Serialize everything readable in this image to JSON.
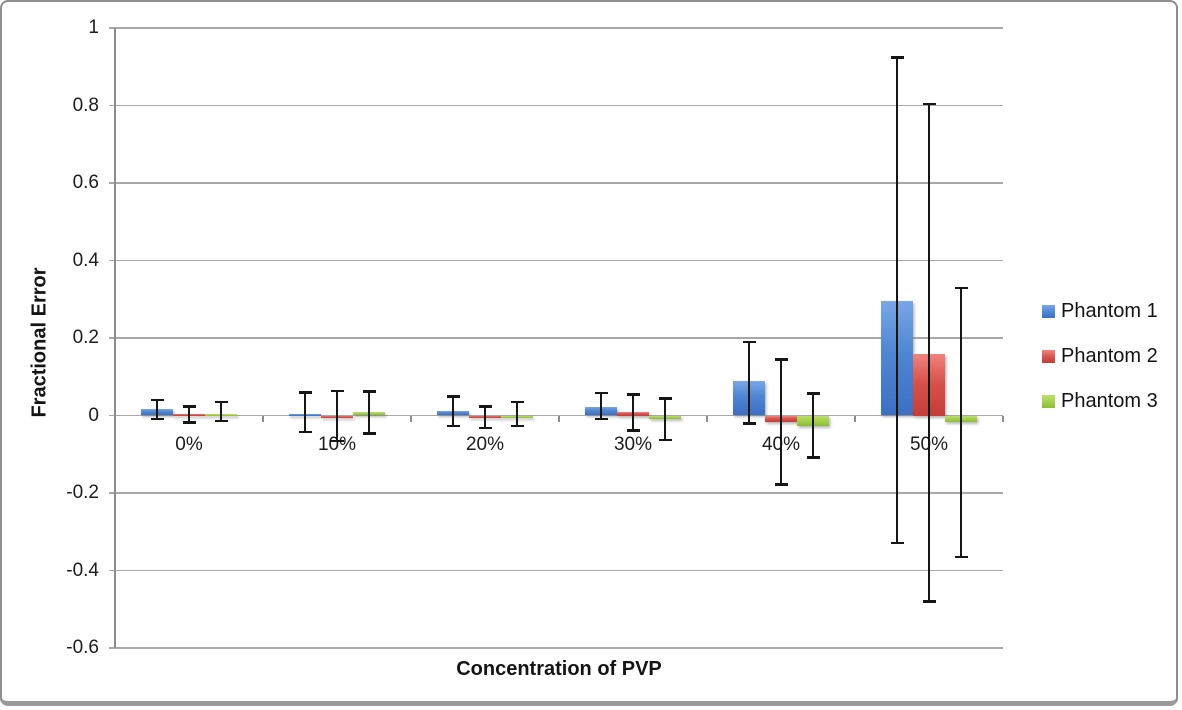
{
  "chart_data": {
    "type": "bar",
    "title": "",
    "xlabel": "Concentration of PVP",
    "ylabel": "Fractional Error",
    "categories": [
      "0%",
      "10%",
      "20%",
      "30%",
      "40%",
      "50%"
    ],
    "ylim": [
      -0.6,
      1
    ],
    "ytick_step": 0.2,
    "ytick_labels": [
      "1",
      "0.8",
      "0.6",
      "0.4",
      "0.2",
      "0",
      "-0.2",
      "-0.4",
      "-0.6"
    ],
    "grid": "horizontal-only",
    "legend_position": "right",
    "error_bars": true,
    "colors": {
      "gridline": "#a8a8a8",
      "axis": "#8c8c8c",
      "error_bar": "#161616",
      "text": "#1c1c1c"
    },
    "series": [
      {
        "name": "Phantom 1",
        "color": "#4f86d2",
        "color_light": "#7aa7e8",
        "color_dark": "#3d6fc4",
        "values": [
          0.016,
          0.004,
          0.012,
          0.022,
          0.088,
          0.296
        ],
        "err_hi": [
          0.041,
          0.06,
          0.05,
          0.059,
          0.19,
          0.925
        ],
        "err_lo": [
          -0.01,
          -0.043,
          -0.028,
          -0.01,
          -0.021,
          -0.33
        ]
      },
      {
        "name": "Phantom 2",
        "color": "#d7534e",
        "color_light": "#f0847d",
        "color_dark": "#c23d38",
        "values": [
          0.003,
          -0.002,
          -0.005,
          0.01,
          -0.017,
          0.16
        ],
        "err_hi": [
          0.024,
          0.064,
          0.024,
          0.055,
          0.145,
          0.805
        ],
        "err_lo": [
          -0.019,
          -0.066,
          -0.033,
          -0.039,
          -0.179,
          -0.48
        ]
      },
      {
        "name": "Phantom 3",
        "color": "#a6d14f",
        "color_light": "#bede6f",
        "color_dark": "#8cbb38",
        "values": [
          0.004,
          0.008,
          -0.003,
          -0.01,
          -0.026,
          -0.018
        ],
        "err_hi": [
          0.036,
          0.062,
          0.035,
          0.045,
          0.057,
          0.33
        ],
        "err_lo": [
          -0.015,
          -0.047,
          -0.028,
          -0.064,
          -0.109,
          -0.366
        ]
      }
    ]
  }
}
